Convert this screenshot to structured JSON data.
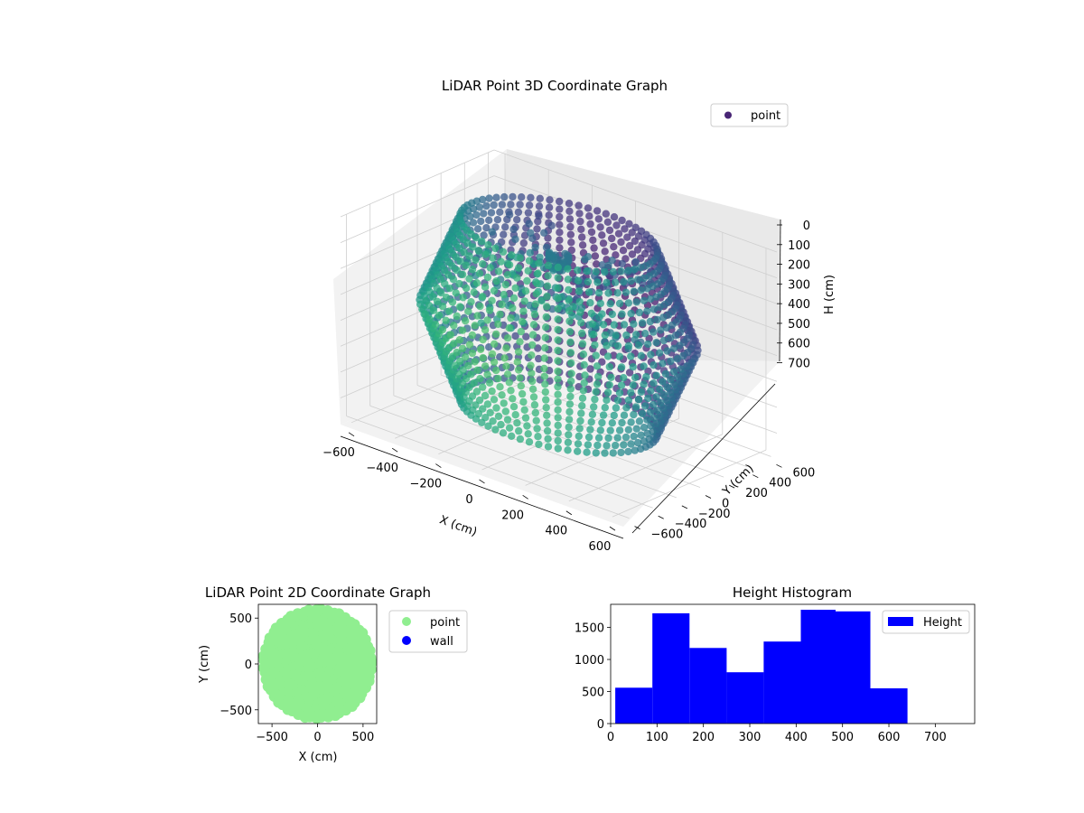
{
  "figure": {
    "background": "#ffffff"
  },
  "chart_data": [
    {
      "type": "scatter",
      "projection": "3d",
      "title": "LiDAR Point 3D Coordinate Graph",
      "xlabel": "X (cm)",
      "ylabel": "Y (cm)",
      "zlabel": "H (cm)",
      "xticks": [
        "−600",
        "−400",
        "−200",
        "0",
        "200",
        "400",
        "600"
      ],
      "yticks": [
        "−600",
        "−400",
        "−200",
        "0",
        "200",
        "400",
        "600"
      ],
      "zticks": [
        "0",
        "100",
        "200",
        "300",
        "400",
        "500",
        "600",
        "700"
      ],
      "xlim": [
        -650,
        650
      ],
      "ylim": [
        -650,
        650
      ],
      "zlim": [
        0,
        780
      ],
      "z_inverted": true,
      "colormap": "viridis",
      "legend": {
        "label": "point",
        "placement": "top-right"
      },
      "structure": {
        "outer_ring_radius": 560,
        "inner_ring_radius": 380,
        "height_range": [
          0,
          700
        ],
        "column_count": 64,
        "central_cluster": {
          "x": 0,
          "y": 0,
          "h": 80
        }
      }
    },
    {
      "type": "scatter",
      "title": "LiDAR Point 2D Coordinate Graph",
      "xlabel": "X (cm)",
      "ylabel": "Y (cm)",
      "xticks": [
        "−500",
        "0",
        "500"
      ],
      "yticks": [
        "−500",
        "0",
        "500"
      ],
      "xlim": [
        -650,
        650
      ],
      "ylim": [
        -650,
        650
      ],
      "grid": false,
      "legend": {
        "placement": "outside-right",
        "entries": [
          {
            "label": "point",
            "color": "#90ee90"
          },
          {
            "label": "wall",
            "color": "#0000ff"
          }
        ]
      },
      "disk": {
        "center": [
          0,
          0
        ],
        "radius": 600
      }
    },
    {
      "type": "bar",
      "title": "Height Histogram",
      "xlabel": "",
      "ylabel": "",
      "xticks": [
        "0",
        "100",
        "200",
        "300",
        "400",
        "500",
        "600",
        "700"
      ],
      "yticks": [
        "0",
        "500",
        "1000",
        "1500"
      ],
      "xlim": [
        0,
        785
      ],
      "ylim": [
        0,
        1860
      ],
      "color": "#0000ff",
      "legend": {
        "label": "Height",
        "placement": "top-right"
      },
      "bins": [
        {
          "from": 10,
          "to": 90,
          "count": 560
        },
        {
          "from": 90,
          "to": 170,
          "count": 1720
        },
        {
          "from": 170,
          "to": 250,
          "count": 1180
        },
        {
          "from": 250,
          "to": 330,
          "count": 800
        },
        {
          "from": 330,
          "to": 410,
          "count": 1280
        },
        {
          "from": 410,
          "to": 485,
          "count": 1775
        },
        {
          "from": 485,
          "to": 560,
          "count": 1750
        },
        {
          "from": 560,
          "to": 640,
          "count": 550
        }
      ]
    }
  ]
}
